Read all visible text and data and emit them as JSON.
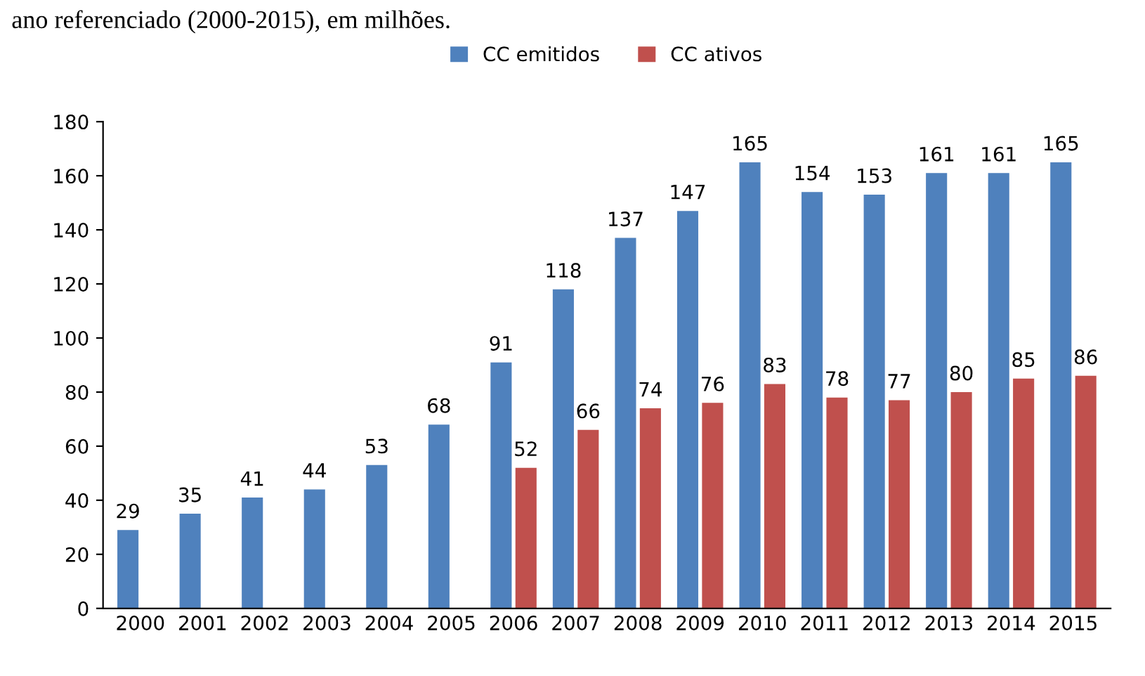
{
  "chart_data": {
    "type": "bar",
    "title": "ano referenciado (2000-2015), em milhões.",
    "categories": [
      "2000",
      "2001",
      "2002",
      "2003",
      "2004",
      "2005",
      "2006",
      "2007",
      "2008",
      "2009",
      "2010",
      "2011",
      "2012",
      "2013",
      "2014",
      "2015"
    ],
    "series": [
      {
        "name": "CC emitidos",
        "color": "#4f81bd",
        "values": [
          29,
          35,
          41,
          44,
          53,
          68,
          91,
          118,
          137,
          147,
          165,
          154,
          153,
          161,
          161,
          165
        ]
      },
      {
        "name": "CC ativos",
        "color": "#c0504d",
        "values": [
          null,
          null,
          null,
          null,
          null,
          null,
          52,
          66,
          74,
          76,
          83,
          78,
          77,
          80,
          85,
          86
        ]
      }
    ],
    "ylim": [
      0,
      180
    ],
    "yticks": [
      0,
      20,
      40,
      60,
      80,
      100,
      120,
      140,
      160,
      180
    ],
    "grid": false,
    "legend": "top",
    "data_labels": true
  }
}
